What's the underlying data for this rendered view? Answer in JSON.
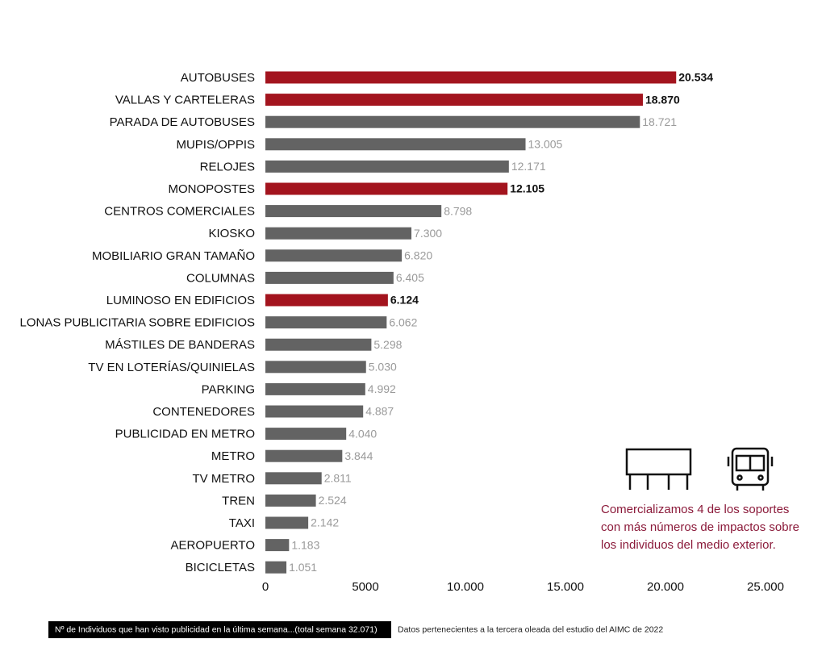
{
  "chart_data": {
    "type": "barh",
    "categories": [
      "AUTOBUSES",
      "VALLAS Y CARTELERAS",
      "PARADA DE AUTOBUSES",
      "MUPIS/OPPIS",
      "RELOJES",
      "MONOPOSTES",
      "CENTROS COMERCIALES",
      "KIOSKO",
      "MOBILIARIO GRAN TAMAÑO",
      "COLUMNAS",
      "LUMINOSO EN EDIFICIOS",
      "LONAS PUBLICITARIA SOBRE EDIFICIOS",
      "MÁSTILES DE BANDERAS",
      "TV EN LOTERÍAS/QUINIELAS",
      "PARKING",
      "CONTENEDORES",
      "PUBLICIDAD EN METRO",
      "METRO",
      "TV METRO",
      "TREN",
      "TAXI",
      "AEROPUERTO",
      "BICICLETAS"
    ],
    "values": [
      20534,
      18870,
      18721,
      13005,
      12171,
      12105,
      8798,
      7300,
      6820,
      6405,
      6124,
      6062,
      5298,
      5030,
      4992,
      4887,
      4040,
      3844,
      2811,
      2524,
      2142,
      1183,
      1051
    ],
    "value_labels": [
      "20.534",
      "18.870",
      "18.721",
      "13.005",
      "12.171",
      "12.105",
      "8.798",
      "7.300",
      "6.820",
      "6.405",
      "6.124",
      "6.062",
      "5.298",
      "5.030",
      "4.992",
      "4.887",
      "4.040",
      "3.844",
      "2.811",
      "2.524",
      "2.142",
      "1.183",
      "1.051"
    ],
    "colors": [
      "#a3141e",
      "#a3141e",
      "#636363",
      "#636363",
      "#636363",
      "#a3141e",
      "#636363",
      "#636363",
      "#636363",
      "#636363",
      "#a3141e",
      "#636363",
      "#636363",
      "#636363",
      "#636363",
      "#636363",
      "#636363",
      "#636363",
      "#636363",
      "#636363",
      "#636363",
      "#636363",
      "#636363"
    ],
    "highlight_color": "#a3141e",
    "xlim": [
      0,
      25000
    ],
    "xticks": [
      0,
      5000,
      {
        "value": 10000,
        "label": "10.000"
      },
      {
        "value": 15000,
        "label": "15.000"
      },
      {
        "value": 20000,
        "label": "20.000"
      },
      {
        "value": 25000,
        "label": "25.000"
      }
    ],
    "grid": false,
    "annotation": [
      "Comercializamos 4 de los soportes",
      "con más números de impactos sobre",
      "los individuos del medio exterior."
    ],
    "footnote": "Nº de Individuos que han visto publicidad en la última semana...(total semana 32.071)",
    "source": "Datos pertenecientes a la tercera oleada del estudio del AIMC de 2022"
  }
}
